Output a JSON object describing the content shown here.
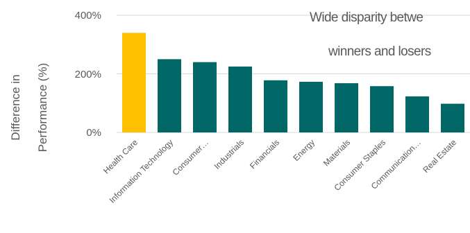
{
  "chart_data": {
    "type": "bar",
    "title": "",
    "xlabel": "",
    "ylabel_lines": [
      "Difference in",
      "Performance (%)"
    ],
    "categories": [
      "Health Care",
      "Information Technology",
      "Consumer…",
      "Industrials",
      "Financials",
      "Energy",
      "Materials",
      "Consumer Staples",
      "Communication…",
      "Real Estate"
    ],
    "values": [
      340,
      250,
      240,
      225,
      178,
      173,
      168,
      158,
      123,
      98
    ],
    "ylim": [
      0,
      400
    ],
    "yticks": [
      0,
      200,
      400
    ],
    "ytick_labels": [
      "0%",
      "200%",
      "400%"
    ],
    "grid": true,
    "highlight_index": 0,
    "colors": {
      "highlight": "#FFC000",
      "default": "#006666",
      "grid": "#D9D9D9",
      "text": "#595959"
    },
    "annotation_lines": [
      "Wide disparity betwe",
      "winners and losers"
    ]
  }
}
